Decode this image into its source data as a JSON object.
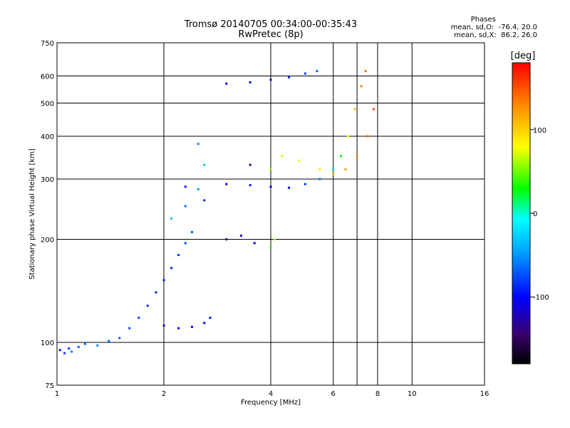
{
  "chart_data": {
    "type": "scatter",
    "title": "Tromsø 20140705 00:34:00-00:35:43",
    "subtitle": "RwPretec (8p)",
    "xlabel": "Frequency [MHz]",
    "ylabel": "Stationary phase Virtual Height [km]",
    "x_scale": "log",
    "y_scale": "log",
    "xlim": [
      1,
      16
    ],
    "ylim": [
      75,
      750
    ],
    "x_ticks": [
      1,
      2,
      4,
      6,
      8,
      10,
      16
    ],
    "y_ticks": [
      75,
      100,
      200,
      300,
      400,
      500,
      600,
      750
    ],
    "x_grid": [
      2,
      4,
      6,
      7,
      8,
      10
    ],
    "y_grid": [
      100,
      200,
      300,
      400,
      500,
      600
    ],
    "grid": true,
    "colorbar": {
      "label": "[deg]",
      "range": [
        -180,
        180
      ],
      "ticks": [
        100,
        0,
        -100
      ]
    },
    "phases": {
      "title": "Phases",
      "line_o": "mean, sd,O:  -76.4, 20.0",
      "line_x": "mean, sd,X:  86.2, 26.0"
    },
    "series": [
      {
        "values": [
          [
            1.02,
            95,
            -90
          ],
          [
            1.05,
            93,
            -85
          ],
          [
            1.08,
            96,
            -80
          ],
          [
            1.1,
            94,
            -60
          ],
          [
            1.15,
            97,
            -70
          ],
          [
            1.2,
            99,
            -65
          ],
          [
            1.3,
            98,
            -55
          ],
          [
            1.4,
            101,
            -60
          ],
          [
            1.5,
            103,
            -70
          ],
          [
            1.6,
            110,
            -75
          ],
          [
            1.7,
            118,
            -80
          ],
          [
            1.8,
            128,
            -85
          ],
          [
            1.9,
            140,
            -90
          ],
          [
            2.0,
            152,
            -88
          ],
          [
            2.1,
            165,
            -85
          ],
          [
            2.2,
            180,
            -80
          ],
          [
            2.3,
            195,
            -75
          ],
          [
            2.4,
            210,
            -70
          ]
        ]
      },
      {
        "values": [
          [
            2.0,
            112,
            -95
          ],
          [
            2.2,
            110,
            -100
          ],
          [
            2.4,
            111,
            -105
          ],
          [
            2.6,
            114,
            -100
          ],
          [
            2.7,
            118,
            -95
          ]
        ]
      },
      {
        "values": [
          [
            2.3,
            285,
            -95
          ],
          [
            2.6,
            260,
            -90
          ],
          [
            3.0,
            290,
            -100
          ],
          [
            3.5,
            288,
            -95
          ],
          [
            4.0,
            285,
            -100
          ],
          [
            4.5,
            283,
            -95
          ],
          [
            5.0,
            290,
            -85
          ],
          [
            5.5,
            300,
            -60
          ],
          [
            6.0,
            320,
            -20
          ],
          [
            6.3,
            350,
            30
          ],
          [
            6.6,
            400,
            80
          ],
          [
            6.9,
            480,
            110
          ],
          [
            7.2,
            560,
            130
          ],
          [
            7.4,
            620,
            140
          ]
        ]
      },
      {
        "values": [
          [
            3.0,
            570,
            -105
          ],
          [
            3.5,
            575,
            -100
          ],
          [
            4.0,
            585,
            -95
          ],
          [
            4.5,
            595,
            -90
          ],
          [
            5.0,
            610,
            -80
          ],
          [
            5.4,
            620,
            -70
          ]
        ]
      },
      {
        "values": [
          [
            3.5,
            330,
            -140
          ],
          [
            4.0,
            320,
            60
          ],
          [
            4.3,
            350,
            70
          ],
          [
            4.8,
            340,
            75
          ],
          [
            5.5,
            320,
            90
          ],
          [
            6.0,
            310,
            110
          ],
          [
            6.5,
            320,
            120
          ],
          [
            7.0,
            350,
            130
          ],
          [
            7.5,
            400,
            140
          ],
          [
            7.8,
            480,
            150
          ]
        ]
      },
      {
        "values": [
          [
            3.0,
            200,
            -130
          ],
          [
            3.3,
            205,
            -120
          ],
          [
            3.6,
            195,
            -110
          ],
          [
            4.0,
            190,
            40
          ],
          [
            4.1,
            200,
            60
          ]
        ]
      },
      {
        "values": [
          [
            2.1,
            230,
            -40
          ],
          [
            2.3,
            250,
            -60
          ],
          [
            2.5,
            280,
            -50
          ],
          [
            2.6,
            330,
            -30
          ],
          [
            2.5,
            380,
            -55
          ]
        ]
      }
    ]
  }
}
